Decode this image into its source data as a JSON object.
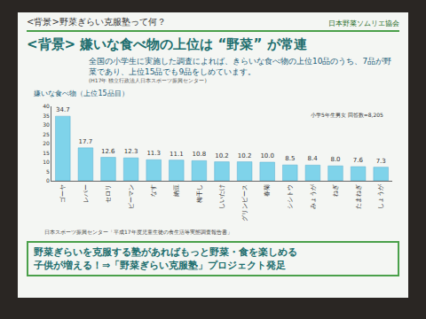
{
  "slide": {
    "header": "<背景>野菜ぎらい克服塾って何？",
    "logo": "日本野菜ソムリエ協会",
    "heading": "<背景> 嫌いな食べ物の上位は “野菜” が常連",
    "body": "全国の小学生に実施した調査によれば、きらいな食べ物の上位10品のうち、7品が野菜であり、上位15品でも9品をしめています。",
    "citation": "(H17年 独立行政法人日本スポーツ振興センター)",
    "source": "日本スポーツ振興センター「平成17年度児童生徒の食生活等実態調査報告書」",
    "conclusion": [
      "野菜ぎらいを克服する塾があればもっと野菜・食を楽しめる",
      "子供が増える！⇒「野菜ぎらい克服塾」プロジェクト発足"
    ]
  },
  "chart_data": {
    "type": "bar",
    "title": "嫌いな食べ物（上位15品目）",
    "annotations": [
      "小学5年生男女 回答数=8,205"
    ],
    "categories": [
      "ゴーヤ",
      "レバー",
      "セロリ",
      "ピーマン",
      "なす",
      "納豆",
      "梅干し",
      "しいたけ",
      "グリンピース",
      "春菊",
      "シシトウ",
      "みょうが",
      "ねぎ",
      "たまねぎ",
      "しょうが"
    ],
    "values": [
      34.7,
      17.7,
      12.6,
      12.3,
      11.3,
      11.1,
      10.8,
      10.2,
      10.2,
      10.0,
      8.5,
      8.4,
      8.0,
      7.6,
      7.3
    ],
    "value_labels": [
      "34.7",
      "17.7",
      "12.6",
      "12.3",
      "11.3",
      "11.1",
      "10.8",
      "10.2",
      "10.2",
      "10.0",
      "8.5",
      "8.4",
      "8.0",
      "7.6",
      "7.3"
    ],
    "data_labels": true,
    "color": "#7fd3ea",
    "ylim": [
      0,
      40
    ],
    "yticks": [
      0,
      5,
      10,
      15,
      20,
      25,
      30,
      35,
      40
    ],
    "grid": false
  }
}
